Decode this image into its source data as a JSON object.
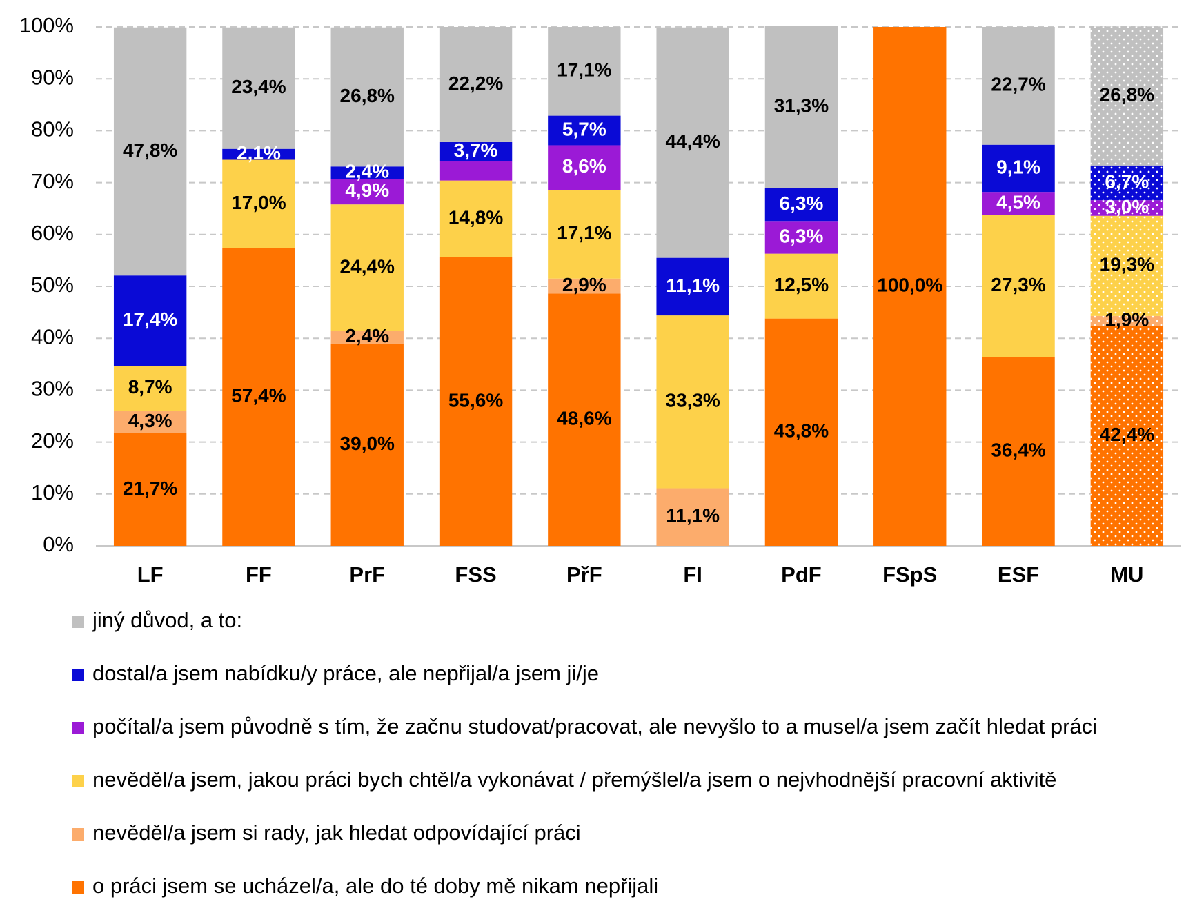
{
  "chart_data": {
    "type": "stacked-bar",
    "categories": [
      "LF",
      "FF",
      "PrF",
      "FSS",
      "PřF",
      "FI",
      "PdF",
      "FSpS",
      "ESF",
      "MU"
    ],
    "ylim": [
      0,
      100
    ],
    "yticks": [
      {
        "value": 0,
        "label": "0%"
      },
      {
        "value": 10,
        "label": "10%"
      },
      {
        "value": 20,
        "label": "20%"
      },
      {
        "value": 30,
        "label": "30%"
      },
      {
        "value": 40,
        "label": "40%"
      },
      {
        "value": 50,
        "label": "50%"
      },
      {
        "value": 60,
        "label": "60%"
      },
      {
        "value": 70,
        "label": "70%"
      },
      {
        "value": 80,
        "label": "80%"
      },
      {
        "value": 90,
        "label": "90%"
      },
      {
        "value": 100,
        "label": "100%"
      }
    ],
    "grid": true,
    "series": [
      {
        "name": "o práci jsem se ucházel/a, ale do té doby mě nikam nepřijali",
        "color": "#ff7300",
        "values": [
          21.7,
          57.4,
          39.0,
          55.6,
          48.6,
          null,
          43.8,
          100.0,
          36.4,
          42.4
        ],
        "value_labels": [
          "21,7%",
          "57,4%",
          "39,0%",
          "55,6%",
          "48,6%",
          null,
          "43,8%",
          "100,0%",
          "36,4%",
          "42,4%"
        ]
      },
      {
        "name": "nevěděl/a jsem si rady, jak hledat odpovídající práci",
        "color": "#fcac6c",
        "values": [
          4.3,
          null,
          2.4,
          null,
          2.9,
          11.1,
          null,
          null,
          null,
          1.9
        ],
        "value_labels": [
          "4,3%",
          null,
          "2,4%",
          null,
          "2,9%",
          "11,1%",
          null,
          null,
          null,
          "1,9%"
        ]
      },
      {
        "name": "nevěděl/a jsem, jakou práci bych chtěl/a vykonávat / přemýšlel/a jsem o nejvhodnější pracovní aktivitě",
        "color": "#fdd14a",
        "values": [
          8.7,
          17.0,
          24.4,
          14.8,
          17.1,
          33.3,
          12.5,
          null,
          27.3,
          19.3
        ],
        "value_labels": [
          "8,7%",
          "17,0%",
          "24,4%",
          "14,8%",
          "17,1%",
          "33,3%",
          "12,5%",
          null,
          "27,3%",
          "19,3%"
        ]
      },
      {
        "name": "počítal/a jsem původně s tím, že začnu studovat/pracovat, ale nevyšlo to a musel/a jsem začít hledat práci",
        "color": "#9b1ad6",
        "values": [
          null,
          null,
          4.9,
          3.7,
          8.6,
          null,
          6.3,
          null,
          4.5,
          3.0
        ],
        "value_labels": [
          null,
          null,
          "4,9%",
          null,
          "8,6%",
          null,
          "6,3%",
          null,
          "4,5%",
          "3,0%"
        ]
      },
      {
        "name": "dostal/a jsem nabídku/y práce, ale nepřijal/a jsem ji/je",
        "color": "#0a0ad6",
        "values": [
          17.4,
          2.1,
          2.4,
          3.7,
          5.7,
          11.1,
          6.3,
          null,
          9.1,
          6.7
        ],
        "value_labels": [
          "17,4%",
          "2,1%",
          "2,4%",
          "3,7%",
          "5,7%",
          "11,1%",
          "6,3%",
          null,
          "9,1%",
          "6,7%"
        ]
      },
      {
        "name": "jiný důvod, a to:",
        "color": "#c0c0c0",
        "values": [
          47.8,
          23.4,
          26.8,
          22.2,
          17.1,
          44.4,
          31.3,
          null,
          22.7,
          26.8
        ],
        "value_labels": [
          "47,8%",
          "23,4%",
          "26,8%",
          "22,2%",
          "17,1%",
          "44,4%",
          "31,3%",
          null,
          "22,7%",
          "26,8%"
        ]
      }
    ]
  }
}
